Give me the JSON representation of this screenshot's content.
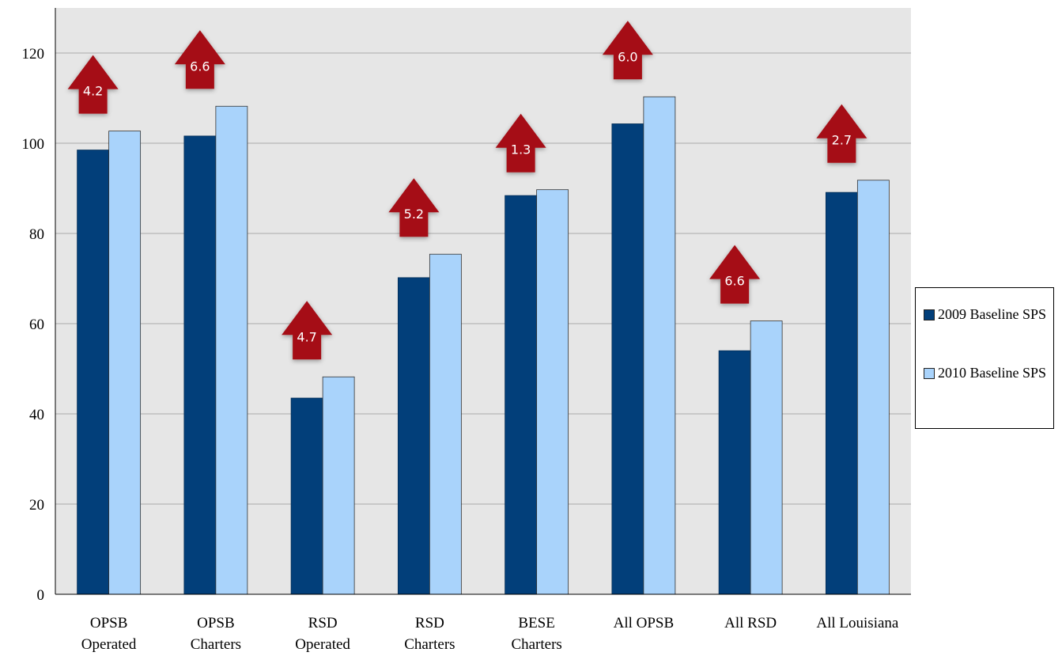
{
  "chart_data": {
    "type": "bar",
    "categories": [
      [
        "OPSB",
        "Operated"
      ],
      [
        "OPSB",
        "Charters"
      ],
      [
        "RSD",
        "Operated"
      ],
      [
        "RSD",
        "Charters"
      ],
      [
        "BESE",
        "Charters"
      ],
      [
        "All OPSB"
      ],
      [
        "All RSD"
      ],
      [
        "All Louisiana"
      ]
    ],
    "series": [
      {
        "name": "2009 Baseline SPS",
        "color": "#023f7a",
        "values": [
          98.5,
          101.6,
          43.5,
          70.2,
          88.4,
          104.3,
          54.0,
          89.1
        ]
      },
      {
        "name": "2010 Baseline SPS",
        "color": "#a9d3fb",
        "values": [
          102.7,
          108.2,
          48.2,
          75.4,
          89.7,
          110.3,
          60.6,
          91.8
        ]
      }
    ],
    "change_labels": [
      "4.2",
      "6.6",
      "4.7",
      "5.2",
      "1.3",
      "6.0",
      "6.6",
      "2.7"
    ],
    "change_arrow_color": "#a50f15",
    "ylim": [
      0,
      130
    ],
    "yticks": [
      0,
      20,
      40,
      60,
      80,
      100,
      120
    ],
    "grid": true,
    "legend_position": "right",
    "title": "",
    "xlabel": "",
    "ylabel": ""
  }
}
